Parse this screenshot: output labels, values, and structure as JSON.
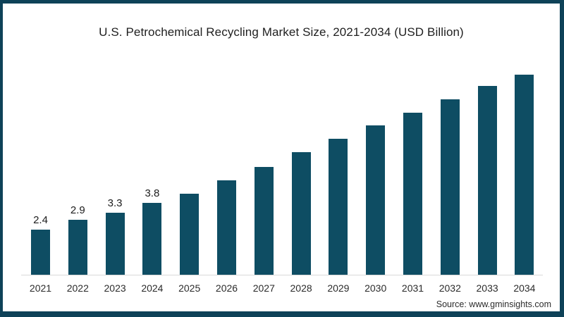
{
  "chart_data": {
    "type": "bar",
    "title": "U.S. Petrochemical Recycling Market Size, 2021-2034 (USD Billion)",
    "categories": [
      "2021",
      "2022",
      "2023",
      "2024",
      "2025",
      "2026",
      "2027",
      "2028",
      "2029",
      "2030",
      "2031",
      "2032",
      "2033",
      "2034"
    ],
    "values": [
      2.4,
      2.9,
      3.3,
      3.8,
      4.3,
      5.0,
      5.7,
      6.5,
      7.2,
      7.9,
      8.6,
      9.3,
      10.0,
      10.6
    ],
    "data_labels": [
      "2.4",
      "2.9",
      "3.3",
      "3.8",
      null,
      null,
      null,
      null,
      null,
      null,
      null,
      null,
      null,
      null
    ],
    "xlabel": "",
    "ylabel": "",
    "ylim": [
      0,
      11
    ],
    "grid": false,
    "legend": false,
    "source": "Source: www.gminsights.com",
    "colors": {
      "bar": "#0e4d63",
      "frame": "#0e4258",
      "axis_line": "#d9d9d9",
      "title_text": "#1f1f1f",
      "tick_text": "#2b2b2b",
      "label_text": "#1c1c1c",
      "background": "#ffffff"
    }
  }
}
